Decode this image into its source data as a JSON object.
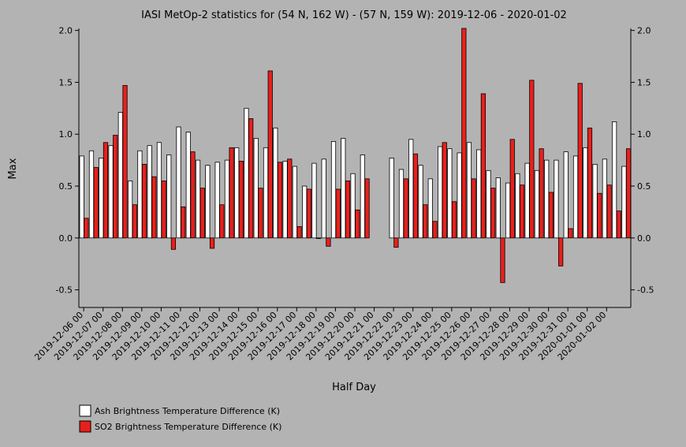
{
  "chart_data": {
    "type": "bar",
    "title": "IASI MetOp-2 statistics for (54 N, 162 W) - (57 N, 159 W): 2019-12-06 - 2020-01-02",
    "xlabel": "Half Day",
    "ylabel": "Max",
    "ylim": [
      -0.67,
      2.02
    ],
    "yticks": [
      "2.0",
      "1.5",
      "1.0",
      "0.5",
      "0.0",
      "-0.5"
    ],
    "ytick_values": [
      2.0,
      1.5,
      1.0,
      0.5,
      0.0,
      -0.5
    ],
    "xtick_labels": [
      "2019-12-06 00",
      "2019-12-07 00",
      "2019-12-08 00",
      "2019-12-09 00",
      "2019-12-10 00",
      "2019-12-11 00",
      "2019-12-12 00",
      "2019-12-13 00",
      "2019-12-14 00",
      "2019-12-15 00",
      "2019-12-16 00",
      "2019-12-17 00",
      "2019-12-18 00",
      "2019-12-19 00",
      "2019-12-20 00",
      "2019-12-21 00",
      "2019-12-22 00",
      "2019-12-23 00",
      "2019-12-24 00",
      "2019-12-25 00",
      "2019-12-26 00",
      "2019-12-27 00",
      "2019-12-28 00",
      "2019-12-29 00",
      "2019-12-30 00",
      "2019-12-31 00",
      "2020-01-01 00",
      "2020-01-02 00"
    ],
    "grid": false,
    "legend_position": "bottom-left",
    "colors": {
      "background": "#b3b3b3",
      "ash": "#ffffff",
      "so2": "#e8201c",
      "outline": "#000000"
    },
    "series": [
      {
        "name": "Ash Brightness Temperature Difference (K)",
        "values": [
          0.79,
          0.84,
          0.77,
          0.89,
          1.21,
          0.55,
          0.84,
          0.89,
          0.92,
          0.8,
          1.07,
          1.02,
          0.75,
          0.7,
          0.73,
          0.75,
          0.87,
          1.25,
          0.96,
          0.87,
          1.06,
          0.74,
          0.69,
          0.5,
          0.72,
          0.76,
          0.93,
          0.96,
          0.62,
          0.8,
          null,
          null,
          0.77,
          0.66,
          0.95,
          0.7,
          0.57,
          0.88,
          0.86,
          0.82,
          0.92,
          0.85,
          0.65,
          0.58,
          0.53,
          0.62,
          0.72,
          0.65,
          0.75,
          0.75,
          0.83,
          0.79,
          0.87,
          0.71,
          0.76,
          1.12,
          0.69
        ]
      },
      {
        "name": "SO2 Brightness Temperature Difference (K)",
        "values": [
          0.19,
          0.68,
          0.92,
          0.99,
          1.47,
          0.32,
          0.71,
          0.59,
          0.55,
          -0.11,
          0.3,
          0.83,
          0.48,
          -0.1,
          0.32,
          0.87,
          0.74,
          1.15,
          0.48,
          1.61,
          0.73,
          0.76,
          0.11,
          0.47,
          0.0,
          -0.08,
          0.47,
          0.55,
          0.27,
          0.57,
          null,
          null,
          -0.09,
          0.57,
          0.81,
          0.32,
          0.16,
          0.92,
          0.35,
          2.02,
          0.57,
          1.39,
          0.48,
          -0.43,
          0.95,
          0.51,
          1.52,
          0.86,
          0.44,
          -0.27,
          0.09,
          1.49,
          1.06,
          0.43,
          0.51,
          0.26,
          0.86
        ]
      }
    ]
  }
}
